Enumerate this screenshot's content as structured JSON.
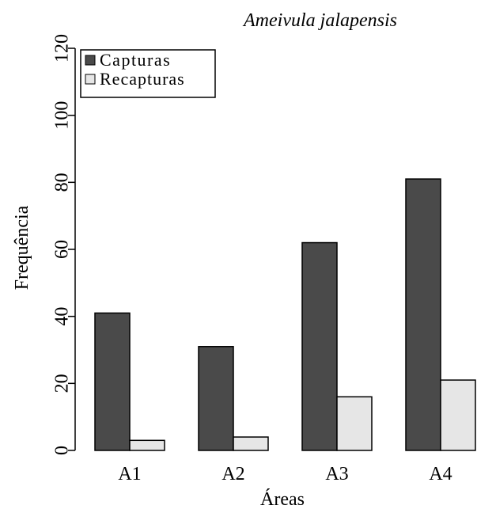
{
  "chart_data": {
    "type": "bar",
    "title": "Ameivula jalapensis",
    "xlabel": "Áreas",
    "ylabel": "Frequência",
    "categories": [
      "A1",
      "A2",
      "A3",
      "A4"
    ],
    "series": [
      {
        "name": "Capturas",
        "values": [
          41,
          31,
          62,
          81
        ],
        "color": "#4a4a4a"
      },
      {
        "name": "Recapturas",
        "values": [
          3,
          4,
          16,
          21
        ],
        "color": "#e6e6e6"
      }
    ],
    "ylim": [
      0,
      120
    ],
    "yticks": [
      "0",
      "20",
      "40",
      "60",
      "80",
      "100",
      "120"
    ],
    "legend_position": "top-left",
    "grid": false
  }
}
